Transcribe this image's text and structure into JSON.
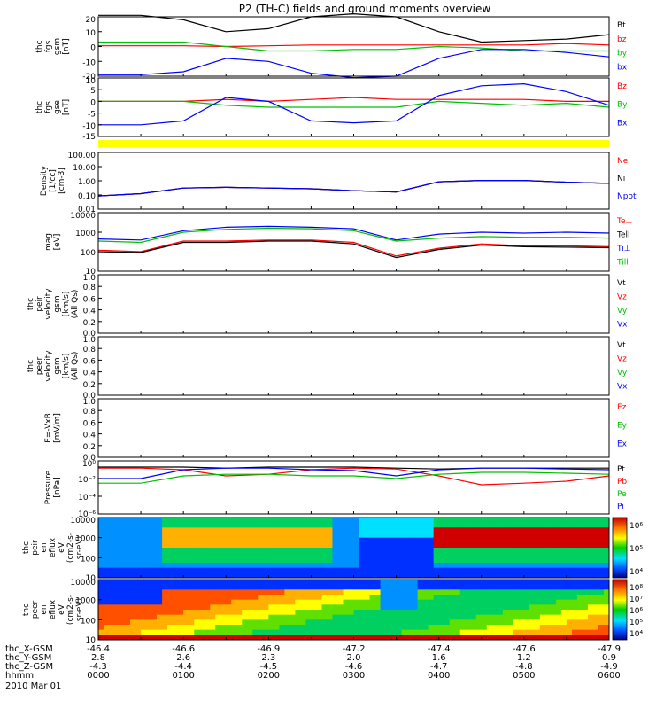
{
  "title": "P2 (TH-C) fields and ground moments overview",
  "date_label": "2010 Mar 01",
  "panels": [
    {
      "id": "fgs_gsm",
      "ylabel": [
        "thc",
        "fgs",
        "gsm",
        "[nT]"
      ],
      "ticks": [
        "20",
        "10",
        "0",
        "-10",
        "-20"
      ],
      "legend": [
        {
          "t": "Bt",
          "c": "#000000"
        },
        {
          "t": "bz",
          "c": "#ff0000"
        },
        {
          "t": "by",
          "c": "#00c000"
        },
        {
          "t": "bx",
          "c": "#0000ff"
        }
      ]
    },
    {
      "id": "fgs_gse",
      "ylabel": [
        "thc",
        "fgs",
        "gse",
        "[nT]"
      ],
      "ticks": [
        "10",
        "5",
        "0",
        "-5",
        "-10",
        "-15"
      ],
      "legend": [
        {
          "t": "Bz",
          "c": "#ff0000"
        },
        {
          "t": "By",
          "c": "#00c000"
        },
        {
          "t": "Bx",
          "c": "#0000ff"
        }
      ]
    },
    {
      "id": "density",
      "ylabel": [
        "Density",
        "[1/cc]",
        "[cm-3]"
      ],
      "ticks": [
        "100.00",
        "10.00",
        "1.00",
        "0.10",
        "0.01"
      ],
      "legend": [
        {
          "t": "Ne",
          "c": "#ff0000"
        },
        {
          "t": "Ni",
          "c": "#000000"
        },
        {
          "t": "Npot",
          "c": "#0000ff"
        }
      ]
    },
    {
      "id": "temp",
      "ylabel": [
        "mag",
        "[eV]"
      ],
      "ticks": [
        "10000",
        "1000",
        "100",
        "10"
      ],
      "legend": [
        {
          "t": "Te⊥",
          "c": "#ff0000"
        },
        {
          "t": "Tell",
          "c": "#000000"
        },
        {
          "t": "Ti⊥",
          "c": "#0000ff"
        },
        {
          "t": "Till",
          "c": "#00c000"
        }
      ]
    },
    {
      "id": "vel_i",
      "ylabel": [
        "thc",
        "peir",
        "velocity",
        "gsm",
        "[km/s]",
        "(All Qs)"
      ],
      "ticks": [
        "1.0",
        "0.8",
        "0.6",
        "0.4",
        "0.2",
        "0.0"
      ],
      "legend": [
        {
          "t": "Vt",
          "c": "#000000"
        },
        {
          "t": "Vz",
          "c": "#ff0000"
        },
        {
          "t": "Vy",
          "c": "#00c000"
        },
        {
          "t": "Vx",
          "c": "#0000ff"
        }
      ]
    },
    {
      "id": "vel_e",
      "ylabel": [
        "thc",
        "peer",
        "velocity",
        "gsm",
        "[km/s]",
        "(All Qs)"
      ],
      "ticks": [
        "1.0",
        "0.8",
        "0.6",
        "0.4",
        "0.2",
        "0.0"
      ],
      "legend": [
        {
          "t": "Vt",
          "c": "#000000"
        },
        {
          "t": "Vz",
          "c": "#ff0000"
        },
        {
          "t": "Vy",
          "c": "#00c000"
        },
        {
          "t": "Vx",
          "c": "#0000ff"
        }
      ]
    },
    {
      "id": "efield",
      "ylabel": [
        "E=-VxB",
        "[mV/m]"
      ],
      "ticks": [
        "1.0",
        "0.8",
        "0.6",
        "0.4",
        "0.2",
        "0.0"
      ],
      "legend": [
        {
          "t": "Ez",
          "c": "#ff0000"
        },
        {
          "t": "Ey",
          "c": "#00c000"
        },
        {
          "t": "Ex",
          "c": "#0000ff"
        }
      ]
    },
    {
      "id": "pressure",
      "ylabel": [
        "Pressure",
        "[nPa]"
      ],
      "ticks": [
        "10⁰",
        "10⁻²",
        "10⁻⁴",
        "10⁻⁶"
      ],
      "legend": [
        {
          "t": "Pt",
          "c": "#000000"
        },
        {
          "t": "Pb",
          "c": "#ff0000"
        },
        {
          "t": "Pe",
          "c": "#00c000"
        },
        {
          "t": "Pi",
          "c": "#0000ff"
        }
      ]
    },
    {
      "id": "spec_i",
      "ylabel": [
        "thc",
        "peir",
        "en",
        "eflux",
        "eV",
        "(cm2-s-",
        "sr-eV)"
      ],
      "ticks": [
        "10000",
        "1000",
        "100",
        "10"
      ],
      "colorbar_ticks": [
        "10⁶",
        "10⁵",
        "10⁴"
      ]
    },
    {
      "id": "spec_e",
      "ylabel": [
        "thc",
        "peer",
        "en",
        "eflux",
        "eV",
        "(cm2-s-",
        "sr-eV)"
      ],
      "ticks": [
        "10000",
        "1000",
        "100",
        "10"
      ],
      "colorbar_ticks": [
        "10⁸",
        "10⁷",
        "10⁶",
        "10⁵",
        "10⁴"
      ]
    }
  ],
  "x_axis": {
    "row_labels": [
      "thc_X-GSM",
      "thc_Y-GSM",
      "thc_Z-GSM",
      "hhmm"
    ],
    "ticks": [
      [
        "-46.4",
        "2.8",
        "-4.3",
        "0000"
      ],
      [
        "-46.6",
        "2.6",
        "-4.4",
        "0100"
      ],
      [
        "-46.9",
        "2.3",
        "-4.5",
        "0200"
      ],
      [
        "-47.2",
        "2.0",
        "-4.6",
        "0300"
      ],
      [
        "-47.4",
        "1.6",
        "-4.7",
        "0400"
      ],
      [
        "-47.6",
        "1.2",
        "-4.8",
        "0500"
      ],
      [
        "-47.9",
        "0.9",
        "-4.9",
        "0600"
      ]
    ]
  },
  "chart_data": {
    "type": "line",
    "title": "P2 (TH-C) fields and ground moments overview",
    "x": [
      "0000",
      "0030",
      "0100",
      "0130",
      "0200",
      "0230",
      "0300",
      "0330",
      "0400",
      "0430",
      "0500",
      "0530",
      "0600"
    ],
    "xlabel": "hhmm",
    "panels": [
      {
        "name": "fgs gsm [nT]",
        "ylim": [
          -20,
          20
        ],
        "series": [
          {
            "name": "Bt",
            "color": "#000000",
            "values": [
              21,
              21,
              18,
              10,
              12,
              20,
              22,
              20,
              10,
              3,
              4,
              5,
              8
            ]
          },
          {
            "name": "bz",
            "color": "#ff0000",
            "values": [
              0.5,
              0.5,
              0.5,
              0,
              0.5,
              1,
              1,
              1,
              1,
              1,
              1,
              2,
              1
            ]
          },
          {
            "name": "by",
            "color": "#00c000",
            "values": [
              3,
              3,
              3,
              0,
              -3,
              -3,
              -2,
              -2,
              0,
              -1,
              -3,
              -3,
              -3
            ]
          },
          {
            "name": "bx",
            "color": "#0000ff",
            "values": [
              -19,
              -19,
              -17,
              -8,
              -10,
              -18,
              -21,
              -20,
              -8,
              -2,
              -2,
              -4,
              -7
            ]
          }
        ]
      },
      {
        "name": "fgs gse [nT]",
        "ylim": [
          -18,
          12
        ],
        "series": [
          {
            "name": "Bz",
            "color": "#ff0000",
            "values": [
              0,
              0,
              0,
              1,
              0,
              1,
              2,
              1,
              1,
              1,
              1,
              0,
              0
            ]
          },
          {
            "name": "By",
            "color": "#00c000",
            "values": [
              0,
              0,
              0,
              -2,
              -3,
              -3,
              -3,
              -3,
              0,
              -1,
              -2,
              -1,
              -3
            ]
          },
          {
            "name": "Bx",
            "color": "#0000ff",
            "values": [
              -12,
              -12,
              -10,
              2,
              0,
              -10,
              -11,
              -10,
              3,
              8,
              9,
              5,
              -2
            ]
          }
        ]
      },
      {
        "name": "Density [1/cc]",
        "ylim": [
          0.01,
          200
        ],
        "scale": "log",
        "series": [
          {
            "name": "Ne",
            "color": "#ff0000",
            "values": [
              0.1,
              0.15,
              0.4,
              0.45,
              0.4,
              0.35,
              0.25,
              0.2,
              1.2,
              1.5,
              1.5,
              1.1,
              0.9
            ]
          },
          {
            "name": "Ni",
            "color": "#000000",
            "values": [
              0.1,
              0.15,
              0.4,
              0.45,
              0.4,
              0.35,
              0.25,
              0.2,
              1.2,
              1.5,
              1.5,
              1.1,
              0.9
            ]
          },
          {
            "name": "Npot",
            "color": "#0000ff",
            "values": [
              0.1,
              0.15,
              0.4,
              0.45,
              0.4,
              0.35,
              0.25,
              0.2,
              1.2,
              1.5,
              1.5,
              1.1,
              0.9
            ]
          }
        ]
      },
      {
        "name": "mag [eV]",
        "ylim": [
          10,
          10000
        ],
        "scale": "log",
        "series": [
          {
            "name": "Te⊥",
            "color": "#ff0000",
            "values": [
              120,
              100,
              350,
              350,
              400,
              400,
              300,
              60,
              150,
              250,
              200,
              200,
              180
            ]
          },
          {
            "name": "Tell",
            "color": "#000000",
            "values": [
              100,
              90,
              300,
              300,
              350,
              350,
              250,
              50,
              130,
              220,
              180,
              170,
              160
            ]
          },
          {
            "name": "Ti⊥",
            "color": "#0000ff",
            "values": [
              450,
              400,
              1200,
              1800,
              2000,
              1800,
              1500,
              400,
              800,
              1000,
              900,
              1000,
              900
            ]
          },
          {
            "name": "Till",
            "color": "#00c000",
            "values": [
              350,
              300,
              1000,
              1400,
              1600,
              1500,
              1200,
              350,
              500,
              600,
              550,
              550,
              500
            ]
          }
        ]
      },
      {
        "name": "peir velocity gsm [km/s]",
        "ylim": [
          0,
          1
        ],
        "series": []
      },
      {
        "name": "peer velocity gsm [km/s]",
        "ylim": [
          0,
          1
        ],
        "series": []
      },
      {
        "name": "E=-VxB [mV/m]",
        "ylim": [
          0,
          1
        ],
        "series": []
      },
      {
        "name": "Pressure [nPa]",
        "ylim": [
          1e-06,
          1
        ],
        "scale": "log",
        "series": [
          {
            "name": "Pt",
            "color": "#000000",
            "values": [
              0.2,
              0.2,
              0.2,
              0.15,
              0.2,
              0.2,
              0.2,
              0.15,
              0.12,
              0.15,
              0.15,
              0.15,
              0.15
            ]
          },
          {
            "name": "Pb",
            "color": "#ff0000",
            "values": [
              0.15,
              0.15,
              0.1,
              0.02,
              0.03,
              0.1,
              0.15,
              0.12,
              0.02,
              0.002,
              0.003,
              0.005,
              0.02
            ]
          },
          {
            "name": "Pe",
            "color": "#00c000",
            "values": [
              0.003,
              0.003,
              0.02,
              0.03,
              0.03,
              0.02,
              0.02,
              0.01,
              0.03,
              0.05,
              0.05,
              0.04,
              0.03
            ]
          },
          {
            "name": "Pi",
            "color": "#0000ff",
            "values": [
              0.01,
              0.01,
              0.1,
              0.15,
              0.15,
              0.1,
              0.08,
              0.02,
              0.1,
              0.15,
              0.15,
              0.12,
              0.1
            ]
          }
        ]
      },
      {
        "name": "thc peir en eflux",
        "type": "heatmap",
        "ylim": [
          10,
          20000
        ],
        "scale": "log",
        "colorbar": [
          "10⁴",
          "10⁵",
          "10⁶"
        ]
      },
      {
        "name": "thc peer en eflux",
        "type": "heatmap",
        "ylim": [
          10,
          20000
        ],
        "scale": "log",
        "colorbar": [
          "10⁴",
          "10⁵",
          "10⁶",
          "10⁷",
          "10⁸"
        ]
      }
    ]
  }
}
